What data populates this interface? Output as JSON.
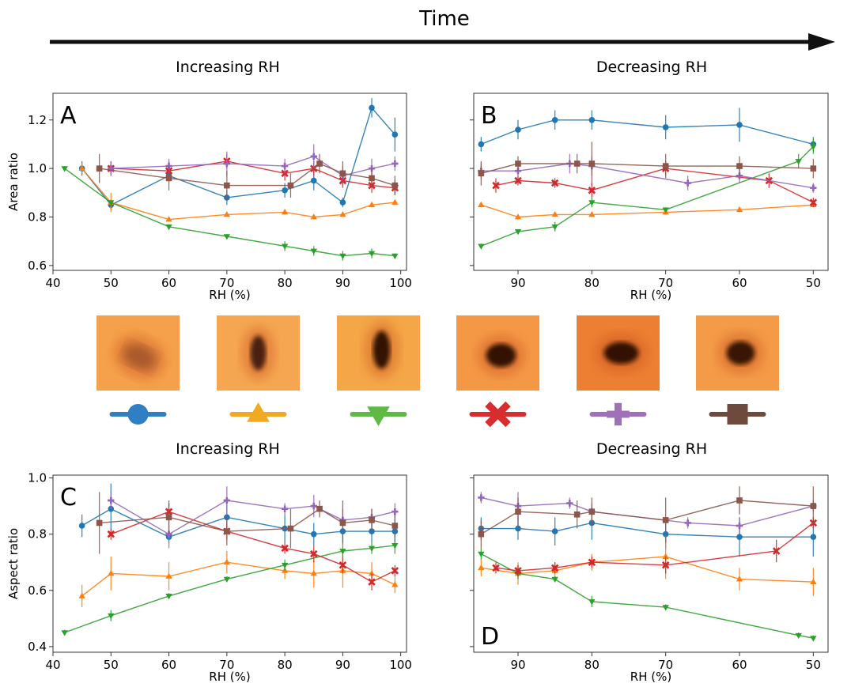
{
  "header": {
    "title": "Time"
  },
  "titles": {
    "top_left": "Increasing RH",
    "top_right": "Decreasing RH",
    "bottom_left": "Increasing RH",
    "bottom_right": "Decreasing RH"
  },
  "colors": {
    "blue": "#1f77b4",
    "orange": "#ff7f0e",
    "green": "#2ca02c",
    "red": "#d62728",
    "purple": "#9467bd",
    "brown": "#8c564b"
  },
  "thumbnails": [
    {
      "marker": "circle",
      "color": "#2e7fc4",
      "bg": "#f5a04a",
      "spot": "faint-oval-tilted"
    },
    {
      "marker": "triangle-up",
      "color": "#f3a91f",
      "bg": "#f6a651",
      "spot": "narrow-vertical"
    },
    {
      "marker": "triangle-down",
      "color": "#5dba45",
      "bg": "#f5a647",
      "spot": "narrow-vertical-dark"
    },
    {
      "marker": "x",
      "color": "#d82c2f",
      "bg": "#f59846",
      "spot": "round-dark"
    },
    {
      "marker": "plus",
      "color": "#a070b8",
      "bg": "#ec7f32",
      "spot": "wide-dark"
    },
    {
      "marker": "square",
      "color": "#6e4a3c",
      "bg": "#f49b47",
      "spot": "round-dark-soft"
    }
  ],
  "chart_data": [
    {
      "panel": "A",
      "type": "line",
      "xlabel": "RH (%)",
      "ylabel": "Area ratio",
      "xlim": [
        40,
        101
      ],
      "ylim": [
        0.58,
        1.31
      ],
      "xticks": [
        40,
        50,
        60,
        70,
        80,
        90,
        100
      ],
      "yticks": [
        0.6,
        0.8,
        1.0,
        1.2
      ],
      "series": [
        {
          "marker": "circle",
          "color": "blue",
          "x": [
            45,
            50,
            60,
            70,
            80,
            85,
            90,
            95,
            99
          ],
          "y": [
            1.0,
            0.85,
            0.97,
            0.88,
            0.91,
            0.95,
            0.86,
            1.25,
            1.14
          ],
          "err": [
            0.03,
            0.02,
            0.02,
            0.03,
            0.03,
            0.04,
            0.02,
            0.04,
            0.07
          ]
        },
        {
          "marker": "triangle-up",
          "color": "orange",
          "x": [
            45,
            50,
            60,
            70,
            80,
            85,
            90,
            95,
            99
          ],
          "y": [
            1.0,
            0.86,
            0.79,
            0.81,
            0.82,
            0.8,
            0.81,
            0.85,
            0.86
          ],
          "err": [
            0.02,
            0.04,
            0.01,
            0.01,
            0.01,
            0.01,
            0.01,
            0.01,
            0.01
          ]
        },
        {
          "marker": "triangle-down",
          "color": "green",
          "x": [
            42,
            50,
            60,
            70,
            80,
            85,
            90,
            95,
            99
          ],
          "y": [
            1.0,
            0.86,
            0.76,
            0.72,
            0.68,
            0.66,
            0.64,
            0.65,
            0.64
          ],
          "err": [
            0.01,
            0.01,
            0.01,
            0.01,
            0.02,
            0.02,
            0.02,
            0.02,
            0.01
          ]
        },
        {
          "marker": "x",
          "color": "red",
          "x": [
            50,
            60,
            70,
            80,
            85,
            90,
            95,
            99
          ],
          "y": [
            1.0,
            0.99,
            1.03,
            0.98,
            1.0,
            0.95,
            0.93,
            0.92
          ],
          "err": [
            0.03,
            0.04,
            0.03,
            0.03,
            0.03,
            0.03,
            0.03,
            0.03
          ]
        },
        {
          "marker": "plus",
          "color": "purple",
          "x": [
            50,
            60,
            70,
            80,
            85,
            90,
            95,
            99
          ],
          "y": [
            1.0,
            1.01,
            1.02,
            1.01,
            1.05,
            0.97,
            1.0,
            1.02
          ],
          "err": [
            0.03,
            0.03,
            0.05,
            0.03,
            0.05,
            0.04,
            0.04,
            0.03
          ]
        },
        {
          "marker": "square",
          "color": "brown",
          "x": [
            48,
            60,
            70,
            81,
            86,
            90,
            95,
            99
          ],
          "y": [
            1.0,
            0.96,
            0.93,
            0.93,
            1.02,
            0.98,
            0.96,
            0.93
          ],
          "err": [
            0.06,
            0.05,
            0.06,
            0.05,
            0.04,
            0.05,
            0.04,
            0.04
          ]
        }
      ]
    },
    {
      "panel": "B",
      "type": "line",
      "xlabel": "RH (%)",
      "ylabel": "",
      "xlim": [
        96,
        48
      ],
      "ylim": [
        0.58,
        1.31
      ],
      "xticks": [
        90,
        80,
        70,
        60,
        50
      ],
      "yticks": [
        0.6,
        0.8,
        1.0,
        1.2
      ],
      "series": [
        {
          "marker": "circle",
          "color": "blue",
          "x": [
            95,
            90,
            85,
            80,
            70,
            60,
            50
          ],
          "y": [
            1.1,
            1.16,
            1.2,
            1.2,
            1.17,
            1.18,
            1.1
          ],
          "err": [
            0.03,
            0.04,
            0.04,
            0.04,
            0.05,
            0.07,
            0.03
          ]
        },
        {
          "marker": "triangle-up",
          "color": "orange",
          "x": [
            95,
            90,
            85,
            80,
            70,
            60,
            50
          ],
          "y": [
            0.85,
            0.8,
            0.81,
            0.81,
            0.82,
            0.83,
            0.85
          ],
          "err": [
            0.01,
            0.01,
            0.01,
            0.01,
            0.01,
            0.01,
            0.01
          ]
        },
        {
          "marker": "triangle-down",
          "color": "green",
          "x": [
            95,
            90,
            85,
            80,
            70,
            52,
            50
          ],
          "y": [
            0.68,
            0.74,
            0.76,
            0.86,
            0.83,
            1.03,
            1.09
          ],
          "err": [
            0.01,
            0.01,
            0.02,
            0.02,
            0.01,
            0.03,
            0.03
          ]
        },
        {
          "marker": "x",
          "color": "red",
          "x": [
            93,
            90,
            85,
            80,
            70,
            56,
            50
          ],
          "y": [
            0.93,
            0.95,
            0.94,
            0.91,
            1.0,
            0.95,
            0.86
          ],
          "err": [
            0.03,
            0.02,
            0.02,
            0.03,
            0.03,
            0.03,
            0.02
          ]
        },
        {
          "marker": "plus",
          "color": "purple",
          "x": [
            95,
            90,
            83,
            80,
            67,
            60,
            50
          ],
          "y": [
            0.99,
            0.99,
            1.02,
            1.01,
            0.94,
            0.97,
            0.92
          ],
          "err": [
            0.03,
            0.03,
            0.04,
            0.04,
            0.03,
            0.03,
            0.02
          ]
        },
        {
          "marker": "square",
          "color": "brown",
          "x": [
            95,
            90,
            82,
            80,
            70,
            60,
            50
          ],
          "y": [
            0.98,
            1.02,
            1.02,
            1.02,
            1.01,
            1.01,
            1.0
          ],
          "err": [
            0.05,
            0.03,
            0.04,
            0.09,
            0.05,
            0.04,
            0.04
          ]
        }
      ]
    },
    {
      "panel": "C",
      "type": "line",
      "xlabel": "RH (%)",
      "ylabel": "Aspect ratio",
      "xlim": [
        40,
        101
      ],
      "ylim": [
        0.38,
        1.01
      ],
      "xticks": [
        40,
        50,
        60,
        70,
        80,
        90,
        100
      ],
      "yticks": [
        0.4,
        0.6,
        0.8,
        1.0
      ],
      "series": [
        {
          "marker": "circle",
          "color": "blue",
          "x": [
            45,
            50,
            60,
            70,
            80,
            85,
            90,
            95,
            99
          ],
          "y": [
            0.83,
            0.89,
            0.79,
            0.86,
            0.82,
            0.8,
            0.81,
            0.81,
            0.81
          ],
          "err": [
            0.04,
            0.09,
            0.02,
            0.05,
            0.05,
            0.04,
            0.04,
            0.04,
            0.04
          ]
        },
        {
          "marker": "triangle-up",
          "color": "orange",
          "x": [
            45,
            50,
            60,
            70,
            80,
            85,
            90,
            95,
            99
          ],
          "y": [
            0.58,
            0.66,
            0.65,
            0.7,
            0.67,
            0.66,
            0.67,
            0.66,
            0.62
          ],
          "err": [
            0.04,
            0.06,
            0.05,
            0.04,
            0.03,
            0.05,
            0.06,
            0.04,
            0.03
          ]
        },
        {
          "marker": "triangle-down",
          "color": "green",
          "x": [
            42,
            50,
            60,
            70,
            80,
            90,
            95,
            99
          ],
          "y": [
            0.45,
            0.51,
            0.58,
            0.64,
            0.69,
            0.74,
            0.75,
            0.76
          ],
          "err": [
            0.01,
            0.02,
            0.01,
            0.01,
            0.02,
            0.02,
            0.02,
            0.03
          ]
        },
        {
          "marker": "x",
          "color": "red",
          "x": [
            50,
            60,
            70,
            80,
            85,
            90,
            95,
            99
          ],
          "y": [
            0.8,
            0.88,
            0.81,
            0.75,
            0.73,
            0.69,
            0.63,
            0.67
          ],
          "err": [
            0.02,
            0.03,
            0.03,
            0.02,
            0.03,
            0.03,
            0.03,
            0.02
          ]
        },
        {
          "marker": "plus",
          "color": "purple",
          "x": [
            50,
            60,
            70,
            80,
            85,
            90,
            95,
            99
          ],
          "y": [
            0.92,
            0.8,
            0.92,
            0.89,
            0.9,
            0.85,
            0.86,
            0.88
          ],
          "err": [
            0.03,
            0.05,
            0.05,
            0.02,
            0.04,
            0.04,
            0.03,
            0.03
          ]
        },
        {
          "marker": "square",
          "color": "brown",
          "x": [
            48,
            60,
            70,
            81,
            86,
            90,
            95,
            99
          ],
          "y": [
            0.84,
            0.86,
            0.81,
            0.82,
            0.89,
            0.84,
            0.85,
            0.83
          ],
          "err": [
            0.11,
            0.06,
            0.05,
            0.07,
            0.03,
            0.08,
            0.04,
            0.04
          ]
        }
      ]
    },
    {
      "panel": "D",
      "type": "line",
      "xlabel": "RH (%)",
      "ylabel": "",
      "xlim": [
        96,
        48
      ],
      "ylim": [
        0.38,
        1.01
      ],
      "xticks": [
        90,
        80,
        70,
        60,
        50
      ],
      "yticks": [
        0.4,
        0.6,
        0.8,
        1.0
      ],
      "series": [
        {
          "marker": "circle",
          "color": "blue",
          "x": [
            95,
            90,
            85,
            80,
            70,
            60,
            50
          ],
          "y": [
            0.82,
            0.82,
            0.81,
            0.84,
            0.8,
            0.79,
            0.79
          ],
          "err": [
            0.04,
            0.04,
            0.05,
            0.06,
            0.05,
            0.07,
            0.07
          ]
        },
        {
          "marker": "triangle-up",
          "color": "orange",
          "x": [
            95,
            90,
            85,
            80,
            70,
            60,
            50
          ],
          "y": [
            0.68,
            0.66,
            0.67,
            0.7,
            0.72,
            0.64,
            0.63
          ],
          "err": [
            0.03,
            0.04,
            0.03,
            0.03,
            0.08,
            0.04,
            0.05
          ]
        },
        {
          "marker": "triangle-down",
          "color": "green",
          "x": [
            95,
            90,
            85,
            80,
            70,
            52,
            50
          ],
          "y": [
            0.73,
            0.66,
            0.64,
            0.56,
            0.54,
            0.44,
            0.43
          ],
          "err": [
            0.02,
            0.02,
            0.01,
            0.02,
            0.01,
            0.01,
            0.01
          ]
        },
        {
          "marker": "x",
          "color": "red",
          "x": [
            93,
            90,
            85,
            80,
            70,
            55,
            50
          ],
          "y": [
            0.68,
            0.67,
            0.68,
            0.7,
            0.69,
            0.74,
            0.84
          ],
          "err": [
            0.02,
            0.02,
            0.02,
            0.02,
            0.03,
            0.04,
            0.02
          ]
        },
        {
          "marker": "plus",
          "color": "purple",
          "x": [
            95,
            90,
            83,
            80,
            67,
            60,
            50
          ],
          "y": [
            0.93,
            0.9,
            0.91,
            0.88,
            0.84,
            0.83,
            0.9
          ],
          "err": [
            0.02,
            0.05,
            0.02,
            0.03,
            0.02,
            0.03,
            0.02
          ]
        },
        {
          "marker": "square",
          "color": "brown",
          "x": [
            95,
            90,
            82,
            80,
            70,
            60,
            50
          ],
          "y": [
            0.8,
            0.88,
            0.87,
            0.88,
            0.85,
            0.92,
            0.9
          ],
          "err": [
            0.05,
            0.05,
            0.05,
            0.05,
            0.08,
            0.05,
            0.07
          ]
        }
      ]
    }
  ]
}
